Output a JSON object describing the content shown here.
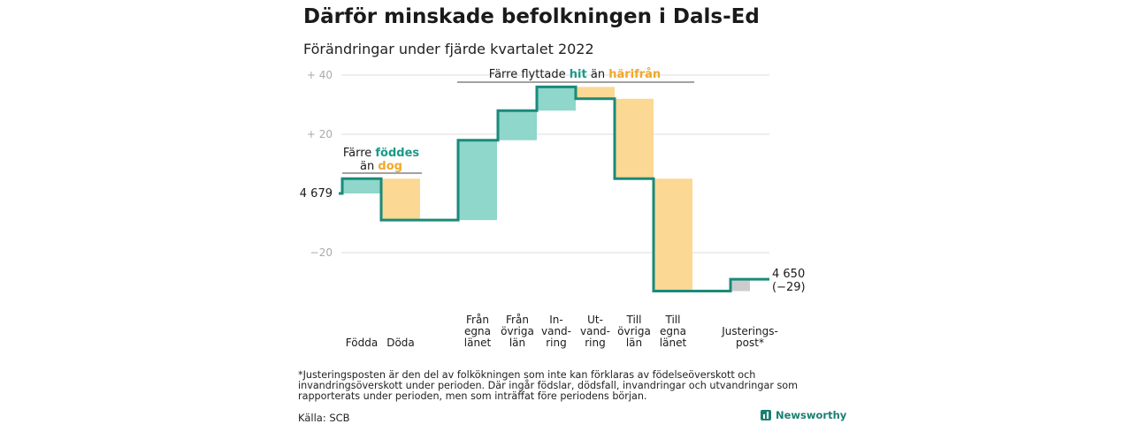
{
  "title": "Därför minskade befolkningen i Dals-Ed",
  "subtitle": "Förändringar under fjärde kvartalet 2022",
  "footnote": "*Justeringsposten är den del av folkökningen som inte kan förklaras av födelseöverskott och invandringsöverskott under perioden. Där ingår födslar, dödsfall, invandringar och utvandringar som rapporterats under perioden, men som inträffat före periodens början.",
  "source": "Källa: SCB",
  "brand": "Newsworthy",
  "chart_data": {
    "type": "waterfall",
    "start_value": 4679,
    "start_label": "4 679",
    "end_value": 4650,
    "end_label": "4 650",
    "end_change_label": "(−29)",
    "ylim": [
      -33,
      43
    ],
    "y_ticks": [
      {
        "value": 40,
        "label": "+ 40"
      },
      {
        "value": 20,
        "label": "+ 20"
      },
      {
        "value": -20,
        "label": "−20"
      }
    ],
    "grid": true,
    "steps": [
      {
        "label": [
          "Födda"
        ],
        "change": 5,
        "cumulative": 5,
        "kind": "in"
      },
      {
        "label": [
          "Döda"
        ],
        "change": -14,
        "cumulative": -9,
        "kind": "out"
      },
      {
        "label": [
          "Från",
          "egna",
          "länet"
        ],
        "change": 27,
        "cumulative": 18,
        "kind": "in"
      },
      {
        "label": [
          "Från",
          "övriga",
          "län"
        ],
        "change": 10,
        "cumulative": 28,
        "kind": "in"
      },
      {
        "label": [
          "In-",
          "vand-",
          "ring"
        ],
        "change": 8,
        "cumulative": 36,
        "kind": "in"
      },
      {
        "label": [
          "Ut-",
          "vand-",
          "ring"
        ],
        "change": -4,
        "cumulative": 32,
        "kind": "out"
      },
      {
        "label": [
          "Till",
          "övriga",
          "län"
        ],
        "change": -27,
        "cumulative": 5,
        "kind": "out"
      },
      {
        "label": [
          "Till",
          "egna",
          "länet"
        ],
        "change": -38,
        "cumulative": -33,
        "kind": "out"
      },
      {
        "label": [
          "Justerings-",
          "post*"
        ],
        "change": 4,
        "cumulative": -29,
        "kind": "adjust"
      }
    ],
    "annotations": [
      {
        "lines": [
          [
            "Färre ",
            "plain"
          ],
          [
            "föddes",
            "in"
          ]
        ],
        "line2": [
          [
            "än ",
            "plain"
          ],
          [
            "dog",
            "out"
          ]
        ]
      },
      {
        "lines": [
          [
            "Färre flyttade ",
            "plain"
          ],
          [
            "hit",
            "in"
          ],
          [
            " än ",
            "plain"
          ],
          [
            "härifrån",
            "out"
          ]
        ]
      }
    ],
    "colors": {
      "line": "#1a8a7a",
      "in_fill": "#8fd6cb",
      "out_fill": "#fbd893",
      "adjust_fill": "#cccccc",
      "in_text": "#1a9a88",
      "out_text": "#f0a82a",
      "grid": "#dddddd",
      "tick_text": "#aaaaaa"
    }
  }
}
